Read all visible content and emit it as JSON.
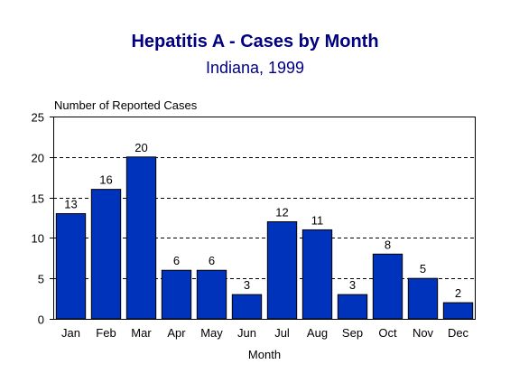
{
  "chart_data": {
    "type": "bar",
    "title": "Hepatitis A - Cases by Month",
    "subtitle": "Indiana, 1999",
    "xlabel": "Month",
    "ylabel": "Number of Reported Cases",
    "categories": [
      "Jan",
      "Feb",
      "Mar",
      "Apr",
      "May",
      "Jun",
      "Jul",
      "Aug",
      "Sep",
      "Oct",
      "Nov",
      "Dec"
    ],
    "values": [
      13,
      16,
      20,
      6,
      6,
      3,
      12,
      11,
      3,
      8,
      5,
      2
    ],
    "ylim": [
      0,
      25
    ],
    "yticks": [
      0,
      5,
      10,
      15,
      20,
      25
    ],
    "grid": "dashed horizontal",
    "data_labels": true,
    "bar_color": "#0033BB",
    "title_color": "#000080"
  }
}
